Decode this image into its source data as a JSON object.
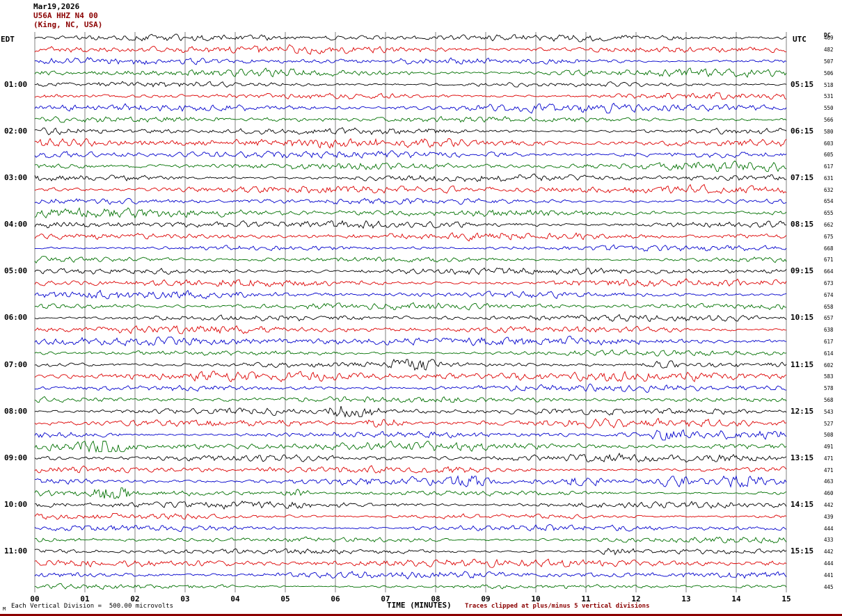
{
  "header": {
    "date": "Mar19,2026",
    "station": "U56A HHZ N4 00",
    "location": "(King, NC, USA)"
  },
  "axes": {
    "left_title": "EDT",
    "right_title": "UTC",
    "dc_title": "DC"
  },
  "footer": {
    "corner_mark": "M",
    "scale_note": "Each Vertical Division =  500.00 microvolts",
    "axis_label": "TIME (MINUTES)",
    "clip_note": "Traces clipped at plus/minus 5 vertical divisions"
  },
  "colors": {
    "grid": "#808080",
    "maroon": "#8b0000",
    "trace_black": "#000000",
    "trace_red": "#dd0000",
    "trace_blue": "#0000cc",
    "trace_green": "#007000"
  },
  "chart_data": {
    "type": "line",
    "subtype": "helicorder seismogram: 48 trace rows (12 hours x 4 rows/hour), 15 minutes per row, colors cycling black/red/blue/green, continuous noise with occasional event bursts",
    "title": "Mar19,2026 U56A HHZ N4 00 (King, NC, USA)",
    "xlabel": "TIME (MINUTES)",
    "x_range": [
      0,
      15
    ],
    "x_ticks": [
      "00",
      "01",
      "02",
      "03",
      "04",
      "05",
      "06",
      "07",
      "08",
      "09",
      "10",
      "11",
      "12",
      "13",
      "14",
      "15"
    ],
    "rows_per_hour": 4,
    "minutes_per_row": 15,
    "trace_colors": [
      "#000000",
      "#dd0000",
      "#0000cc",
      "#007000"
    ],
    "edt_labels": [
      "01:00",
      "02:00",
      "03:00",
      "04:00",
      "05:00",
      "06:00",
      "07:00",
      "08:00",
      "09:00",
      "10:00",
      "11:00"
    ],
    "utc_labels": [
      "05:15",
      "06:15",
      "07:15",
      "08:15",
      "09:15",
      "10:15",
      "11:15",
      "12:15",
      "13:15",
      "14:15",
      "15:15"
    ],
    "dc_values": [
      469,
      482,
      507,
      506,
      518,
      531,
      550,
      566,
      580,
      603,
      605,
      617,
      631,
      632,
      654,
      655,
      662,
      675,
      668,
      671,
      664,
      673,
      674,
      658,
      657,
      638,
      617,
      614,
      602,
      583,
      578,
      568,
      543,
      527,
      508,
      491,
      471,
      471,
      463,
      460,
      442,
      439,
      444,
      433,
      442,
      444,
      441,
      445
    ],
    "clip_divisions": 5,
    "microvolts_per_division": 500.0,
    "grid": true,
    "noise_seed": 20260319,
    "events": [
      {
        "row": 28,
        "start_min": 7.2,
        "end_min": 8.0,
        "amp": 4.0
      },
      {
        "row": 28,
        "start_min": 12.4,
        "end_min": 12.8,
        "amp": 2.2
      },
      {
        "row": 32,
        "start_min": 5.9,
        "end_min": 6.9,
        "amp": 3.2
      },
      {
        "row": 33,
        "start_min": 6.6,
        "end_min": 7.4,
        "amp": 3.4
      },
      {
        "row": 34,
        "start_min": 12.4,
        "end_min": 12.9,
        "amp": 2.6
      },
      {
        "row": 35,
        "start_min": 1.0,
        "end_min": 1.8,
        "amp": 4.5
      },
      {
        "row": 36,
        "start_min": 0.1,
        "end_min": 0.5,
        "amp": 2.0
      },
      {
        "row": 38,
        "start_min": 8.4,
        "end_min": 8.9,
        "amp": 2.6
      },
      {
        "row": 38,
        "start_min": 10.7,
        "end_min": 11.3,
        "amp": 3.0
      },
      {
        "row": 38,
        "start_min": 12.5,
        "end_min": 13.0,
        "amp": 3.0
      },
      {
        "row": 38,
        "start_min": 13.8,
        "end_min": 14.4,
        "amp": 2.6
      },
      {
        "row": 39,
        "start_min": 1.3,
        "end_min": 1.8,
        "amp": 3.6
      },
      {
        "row": 39,
        "start_min": 4.9,
        "end_min": 5.4,
        "amp": 3.6
      },
      {
        "row": 44,
        "start_min": 11.4,
        "end_min": 11.9,
        "amp": 3.0
      }
    ]
  }
}
